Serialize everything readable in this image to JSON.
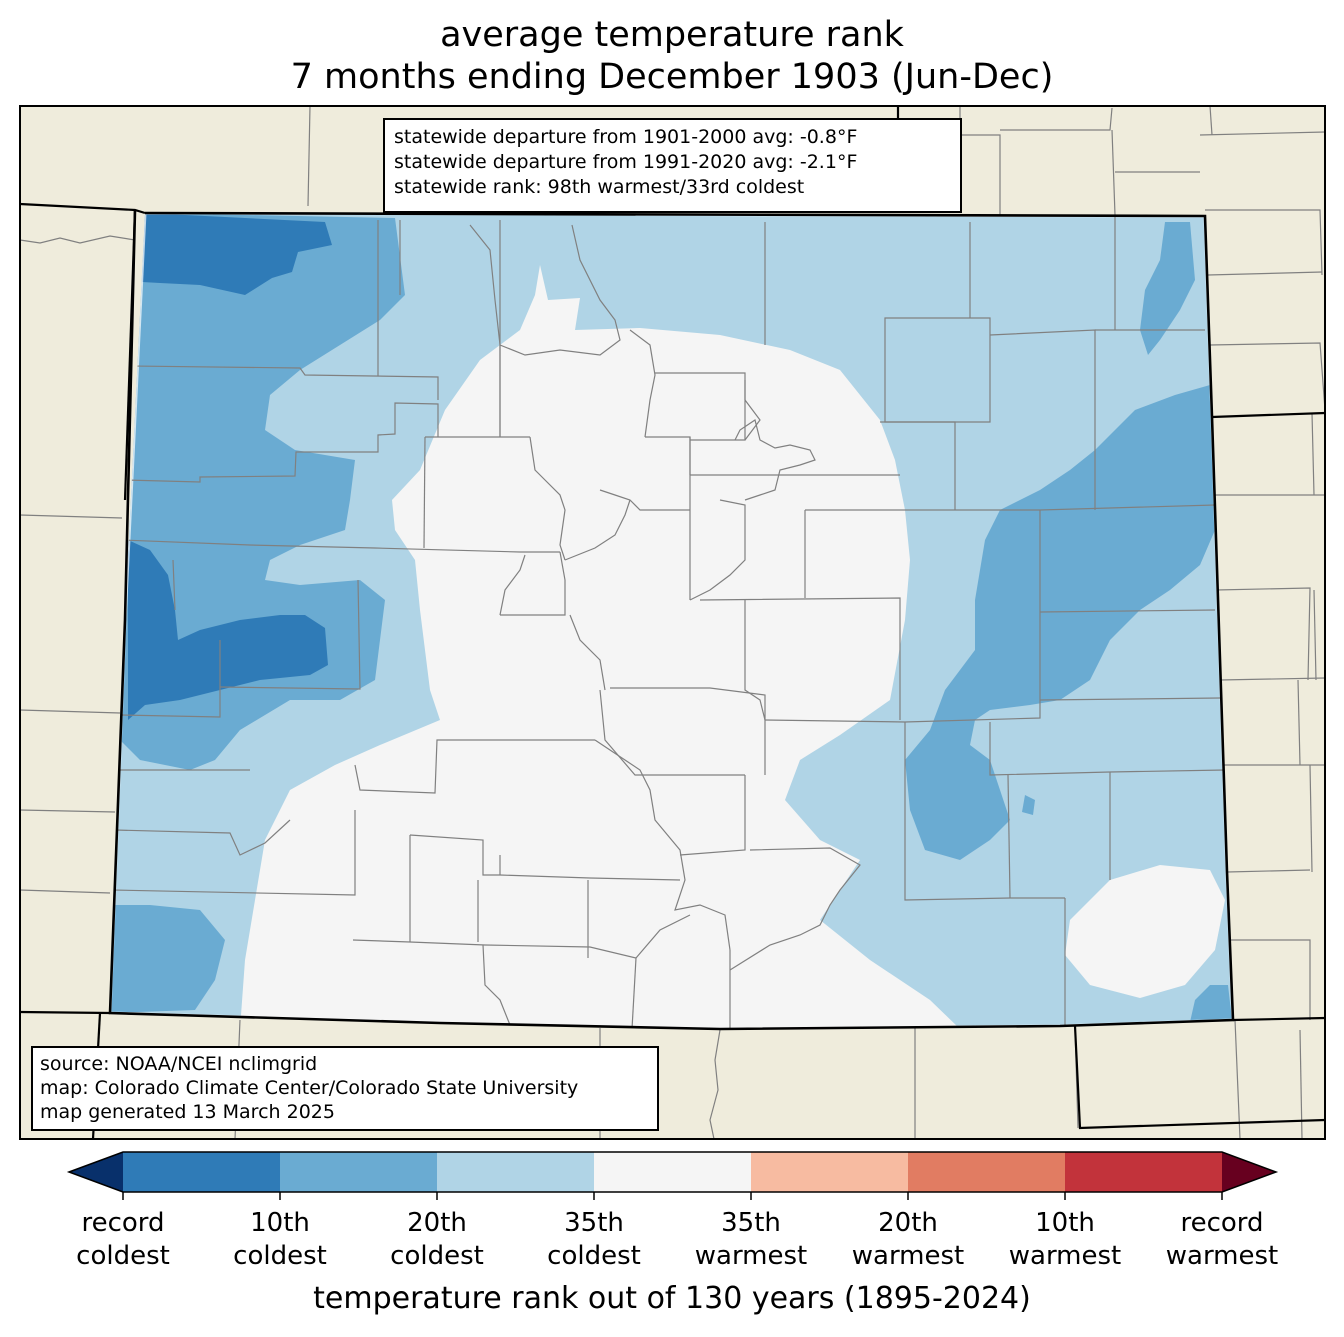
{
  "title": {
    "line1": "average temperature rank",
    "line2": "7 months ending December 1903 (Jun-Dec)"
  },
  "stats": {
    "line1": "statewide departure from 1901-2000 avg: -0.8°F",
    "line2": "statewide departure from 1991-2020 avg: -2.1°F",
    "line3": "statewide rank: 98th warmest/33rd coldest"
  },
  "source": {
    "line1": "source: NOAA/NCEI nclimgrid",
    "line2": "map: Colorado Climate Center/Colorado State University",
    "line3": "map generated 13 March 2025"
  },
  "colorbar": {
    "title": "temperature rank out of 130 years (1895-2024)",
    "ticks": [
      {
        "line1": "record",
        "line2": "coldest"
      },
      {
        "line1": "10th",
        "line2": "coldest"
      },
      {
        "line1": "20th",
        "line2": "coldest"
      },
      {
        "line1": "35th",
        "line2": "coldest"
      },
      {
        "line1": "35th",
        "line2": "warmest"
      },
      {
        "line1": "20th",
        "line2": "warmest"
      },
      {
        "line1": "10th",
        "line2": "warmest"
      },
      {
        "line1": "record",
        "line2": "warmest"
      }
    ],
    "colors": {
      "extend_cold": "#08306b",
      "record_to_10th_coldest": "#2f7bb7",
      "10th_to_20th_coldest": "#6aabd2",
      "20th_to_35th_coldest": "#b0d4e6",
      "near_normal": "#f5f5f5",
      "35th_to_20th_warmest": "#f7bba1",
      "20th_to_10th_warmest": "#e17c62",
      "10th_to_record_warmest": "#c2333b",
      "extend_warm": "#67001f"
    }
  },
  "map_colors": {
    "background_land": "#efecdc",
    "county_lines": "#808080",
    "state_lines": "#000000"
  }
}
